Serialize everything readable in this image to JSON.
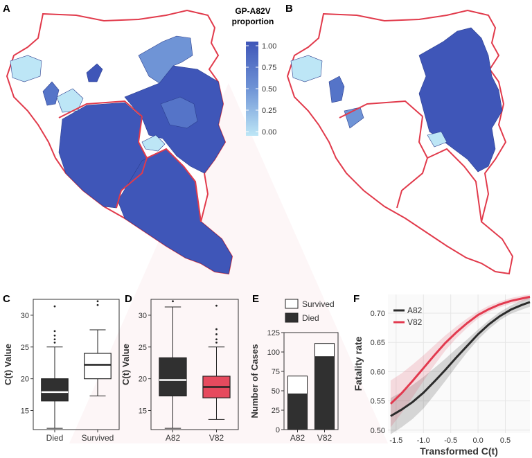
{
  "panel_labels": [
    "A",
    "B",
    "C",
    "D",
    "E",
    "F"
  ],
  "colors": {
    "high": "#3f56b8",
    "mid": "#6f94d6",
    "low": "#bde6f6",
    "border": "#e13a4b",
    "died_fill": "#303030",
    "survived_fill": "#ffffff",
    "a82": "#2b2b2b",
    "v82": "#e23a4f",
    "v82_box": "#e64a5e"
  },
  "legend_A": {
    "title_line1": "GP-A82V",
    "title_line2": "proportion",
    "ticks": [
      "1.00",
      "0.75",
      "0.50",
      "0.25",
      "0.00"
    ]
  },
  "chart_data": [
    {
      "panel": "C",
      "type": "box",
      "ylabel": "C(t) Value",
      "ylim": [
        12,
        32.5
      ],
      "yticks": [
        15,
        20,
        25,
        30
      ],
      "categories": [
        "Died",
        "Survived"
      ],
      "boxes": [
        {
          "category": "Died",
          "fill": "#303030",
          "min": 12.2,
          "q1": 16.5,
          "median": 17.9,
          "q3": 20.0,
          "max": 25.0,
          "outliers": [
            25.7,
            26.2,
            26.8,
            27.5,
            31.4
          ]
        },
        {
          "category": "Survived",
          "fill": "#ffffff",
          "min": 17.3,
          "q1": 20.0,
          "median": 22.2,
          "q3": 24.0,
          "max": 27.7,
          "outliers": [
            31.6,
            32.2
          ]
        }
      ]
    },
    {
      "panel": "D",
      "type": "box",
      "ylabel": "C(t) Value",
      "ylim": [
        12,
        32.5
      ],
      "yticks": [
        15,
        20,
        25,
        30
      ],
      "categories": [
        "A82",
        "V82"
      ],
      "boxes": [
        {
          "category": "A82",
          "fill": "#303030",
          "min": 12.2,
          "q1": 17.3,
          "median": 19.8,
          "q3": 23.3,
          "max": 31.3,
          "outliers": [
            32.2
          ]
        },
        {
          "category": "V82",
          "fill": "#e64a5e",
          "min": 13.6,
          "q1": 17.0,
          "median": 18.7,
          "q3": 20.4,
          "max": 25.0,
          "outliers": [
            25.7,
            26.2,
            27.0,
            27.8,
            31.5
          ]
        }
      ]
    },
    {
      "panel": "E",
      "type": "bar",
      "stacked": true,
      "ylabel": "Number of Cases",
      "ylim": [
        0,
        125
      ],
      "yticks": [
        0,
        25,
        50,
        75,
        100,
        125
      ],
      "categories": [
        "A82",
        "V82"
      ],
      "series": [
        {
          "name": "Died",
          "fill": "#303030",
          "values": [
            46,
            94
          ]
        },
        {
          "name": "Survived",
          "fill": "#ffffff",
          "values": [
            23,
            17
          ]
        }
      ],
      "legend_position": "top"
    },
    {
      "panel": "F",
      "type": "line",
      "xlabel": "Transformed C(t)",
      "ylabel": "Fatality rate",
      "xlim": [
        -1.65,
        0.95
      ],
      "ylim": [
        0.495,
        0.732
      ],
      "xticks": [
        -1.5,
        -1.0,
        -0.5,
        0.0,
        0.5
      ],
      "xtick_labels": [
        "-1.5",
        "-1.0",
        "-0.5",
        "0.0",
        "0.5"
      ],
      "yticks": [
        0.5,
        0.55,
        0.6,
        0.65,
        0.7
      ],
      "ytick_labels": [
        "0.50",
        "0.55",
        "0.60",
        "0.65",
        "0.70"
      ],
      "grid": true,
      "legend_position": "top-left",
      "series": [
        {
          "name": "A82",
          "color": "#2b2b2b",
          "x": [
            -1.6,
            -1.4,
            -1.2,
            -1.0,
            -0.8,
            -0.6,
            -0.4,
            -0.2,
            0.0,
            0.2,
            0.4,
            0.6,
            0.8,
            0.95
          ],
          "y": [
            0.524,
            0.535,
            0.548,
            0.564,
            0.583,
            0.603,
            0.624,
            0.644,
            0.664,
            0.681,
            0.695,
            0.706,
            0.714,
            0.719
          ],
          "upper": [
            0.555,
            0.565,
            0.577,
            0.591,
            0.606,
            0.622,
            0.639,
            0.655,
            0.672,
            0.688,
            0.702,
            0.713,
            0.722,
            0.727
          ],
          "lower": [
            0.493,
            0.505,
            0.519,
            0.537,
            0.56,
            0.584,
            0.609,
            0.633,
            0.655,
            0.673,
            0.688,
            0.699,
            0.706,
            0.711
          ]
        },
        {
          "name": "V82",
          "color": "#e23a4f",
          "x": [
            -1.6,
            -1.4,
            -1.2,
            -1.0,
            -0.8,
            -0.6,
            -0.4,
            -0.2,
            0.0,
            0.2,
            0.4,
            0.6,
            0.8,
            0.95
          ],
          "y": [
            0.545,
            0.563,
            0.584,
            0.606,
            0.628,
            0.649,
            0.667,
            0.683,
            0.697,
            0.707,
            0.715,
            0.721,
            0.725,
            0.728
          ],
          "upper": [
            0.585,
            0.597,
            0.612,
            0.628,
            0.645,
            0.662,
            0.677,
            0.691,
            0.703,
            0.713,
            0.72,
            0.726,
            0.73,
            0.732
          ],
          "lower": [
            0.505,
            0.529,
            0.556,
            0.584,
            0.611,
            0.636,
            0.657,
            0.675,
            0.691,
            0.702,
            0.71,
            0.716,
            0.72,
            0.724
          ]
        }
      ]
    }
  ]
}
